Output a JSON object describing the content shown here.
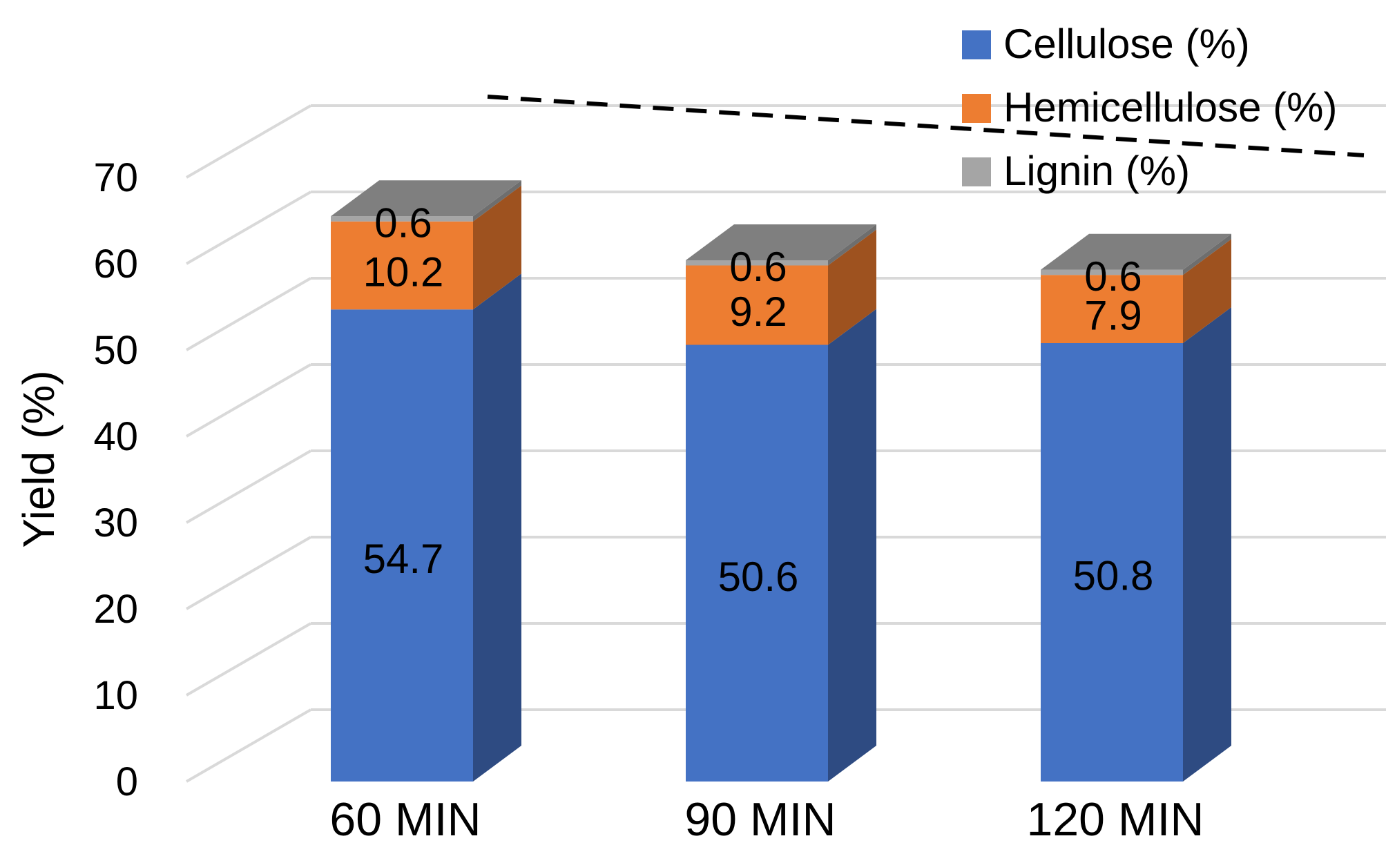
{
  "chart_data": {
    "type": "bar",
    "stacked": true,
    "style": "3d",
    "title": "",
    "xlabel": "",
    "ylabel": "Yield (%)",
    "ylim": [
      0,
      70
    ],
    "yticks": [
      0,
      10,
      20,
      30,
      40,
      50,
      60,
      70
    ],
    "grid": true,
    "legend_position": "top-right",
    "categories": [
      "60 MIN",
      "90 MIN",
      "120 MIN"
    ],
    "series": [
      {
        "name": "Cellulose (%)",
        "values": [
          54.7,
          50.6,
          50.8
        ],
        "labels": [
          "54.7",
          "50.6",
          "50.8"
        ]
      },
      {
        "name": "Hemicellulose (%)",
        "values": [
          10.2,
          9.2,
          7.9
        ],
        "labels": [
          "10.2",
          "9.2",
          "7.9"
        ]
      },
      {
        "name": "Lignin (%)",
        "values": [
          0.6,
          0.6,
          0.6
        ],
        "labels": [
          "0.6",
          "0.6",
          "0.6"
        ]
      }
    ],
    "colors": {
      "front": [
        "#4472C4",
        "#ED7D31",
        "#A5A5A5"
      ],
      "side": [
        "#2E4B82",
        "#9E521F",
        "#6E6E6E"
      ],
      "top": [
        "#7F7F7F",
        "#7F7F7F",
        "#7F7F7F"
      ],
      "grid": "#D9D9D9",
      "dashed_line": "#000000"
    },
    "annotations": [
      {
        "type": "dashed-trend-line",
        "description": "dashed line over bar tops"
      }
    ]
  }
}
